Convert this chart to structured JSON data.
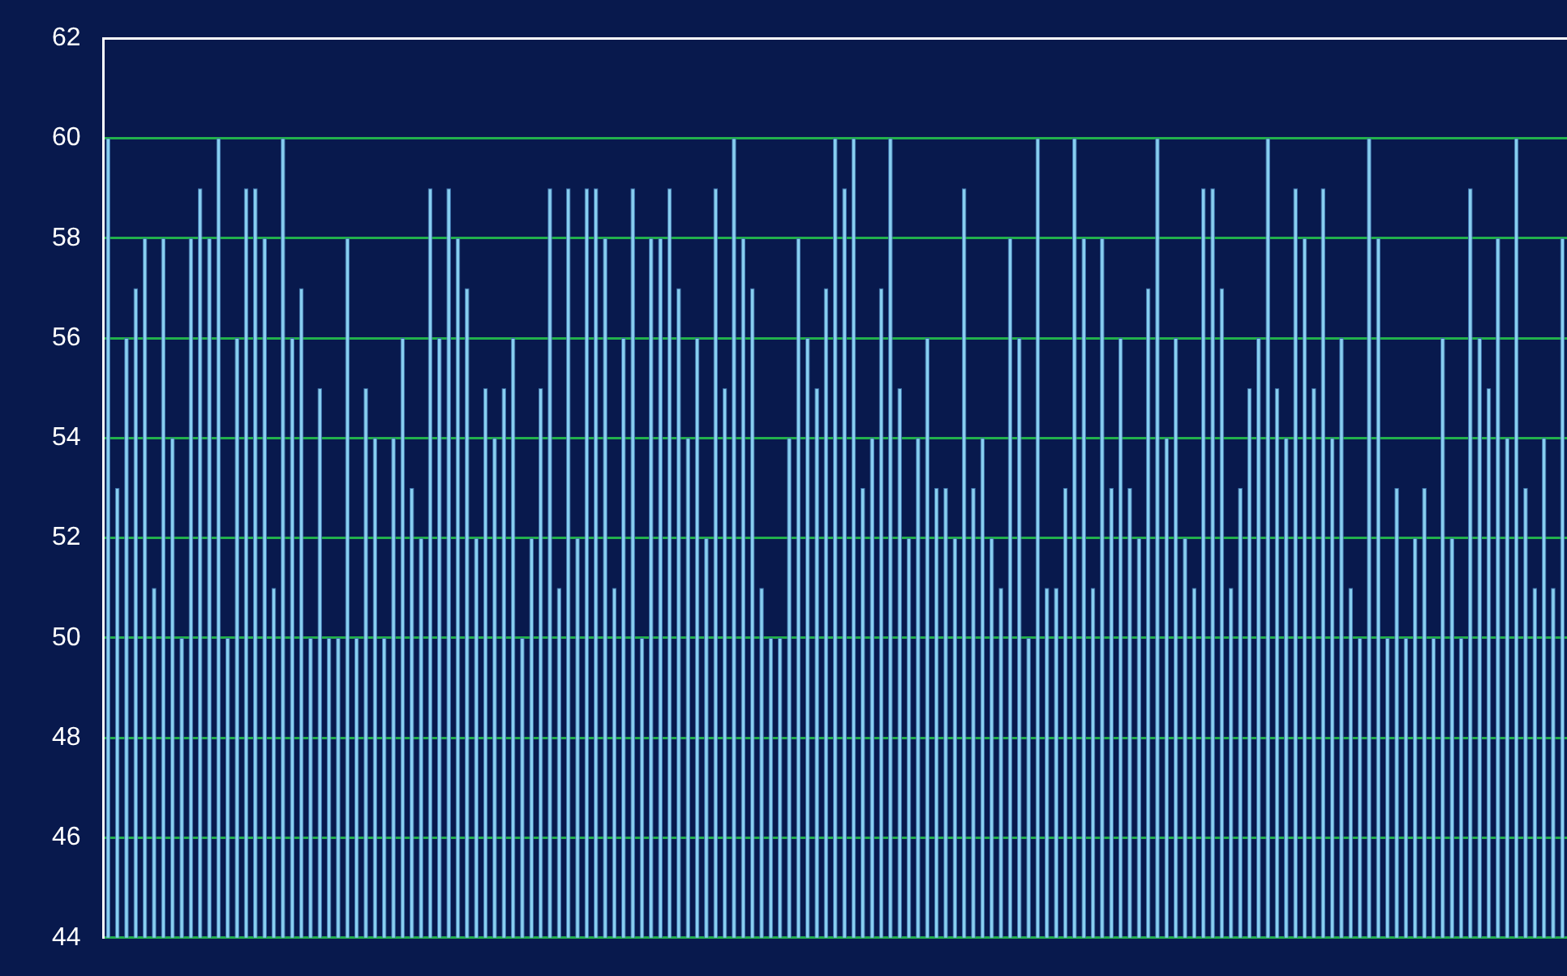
{
  "chart_data": {
    "type": "bar",
    "categories": [
      null,
      null,
      null,
      null,
      null,
      null,
      null,
      null,
      null,
      null,
      null,
      null,
      null,
      null,
      null,
      null,
      null,
      null,
      null,
      null,
      null,
      null,
      null,
      null,
      null,
      null,
      null,
      null,
      null,
      null,
      null,
      null,
      null,
      null,
      null,
      null,
      null,
      null,
      null,
      null,
      null,
      null,
      null,
      null,
      null,
      null,
      null,
      null,
      null,
      null,
      null,
      null,
      null,
      null,
      null,
      null,
      null,
      null,
      null,
      null,
      null,
      null,
      null,
      null,
      null,
      null,
      null,
      null,
      null,
      null,
      null,
      null,
      null,
      null,
      null,
      null,
      null,
      null,
      null,
      null,
      null,
      null,
      null,
      null,
      null,
      null,
      null,
      null,
      null,
      null,
      null,
      null,
      null,
      null,
      null,
      null,
      null,
      null,
      null,
      null,
      null,
      null,
      null,
      null,
      null,
      null,
      null,
      null,
      null,
      null,
      null,
      null,
      null,
      null,
      null,
      null,
      null,
      null,
      null,
      null,
      null,
      null,
      null,
      null,
      null,
      null,
      null,
      null,
      null,
      null,
      null,
      null,
      null,
      null,
      null,
      null,
      null,
      null,
      null,
      null,
      null,
      null,
      null,
      null,
      null,
      null,
      null,
      null,
      null,
      null,
      null,
      null,
      null,
      null,
      null,
      null,
      null,
      null,
      null
    ],
    "values": [
      60,
      53,
      56,
      57,
      58,
      51,
      58,
      54,
      50,
      58,
      59,
      58,
      60,
      50,
      56,
      59,
      59,
      58,
      51,
      60,
      56,
      57,
      50,
      55,
      50,
      50,
      58,
      50,
      55,
      54,
      50,
      54,
      56,
      53,
      52,
      59,
      56,
      59,
      58,
      57,
      52,
      55,
      54,
      55,
      56,
      50,
      52,
      55,
      59,
      51,
      59,
      52,
      59,
      59,
      58,
      51,
      56,
      59,
      50,
      58,
      58,
      59,
      57,
      54,
      56,
      52,
      59,
      55,
      60,
      58,
      57,
      51,
      50,
      50,
      54,
      58,
      56,
      55,
      57,
      60,
      59,
      60,
      53,
      54,
      57,
      60,
      55,
      52,
      54,
      56,
      53,
      53,
      52,
      59,
      53,
      54,
      52,
      51,
      58,
      56,
      50,
      60,
      51,
      51,
      53,
      60,
      58,
      51,
      58,
      53,
      56,
      53,
      52,
      57,
      60,
      54,
      56,
      52,
      51,
      59,
      59,
      57,
      51,
      53,
      55,
      56,
      60,
      55,
      54,
      59,
      58,
      55,
      59,
      54,
      56,
      51,
      50,
      60,
      58,
      50,
      53,
      50,
      52,
      53,
      50,
      56,
      52,
      50,
      59,
      56,
      55,
      58,
      54,
      60,
      53,
      51,
      54,
      51,
      58
    ],
    "color": "#87cef0",
    "ylim": [
      44,
      62
    ],
    "yticks": [
      44,
      46,
      48,
      50,
      52,
      54,
      56,
      58,
      60,
      62
    ],
    "grid": "y",
    "tick_labels": "y",
    "legend": false
  }
}
